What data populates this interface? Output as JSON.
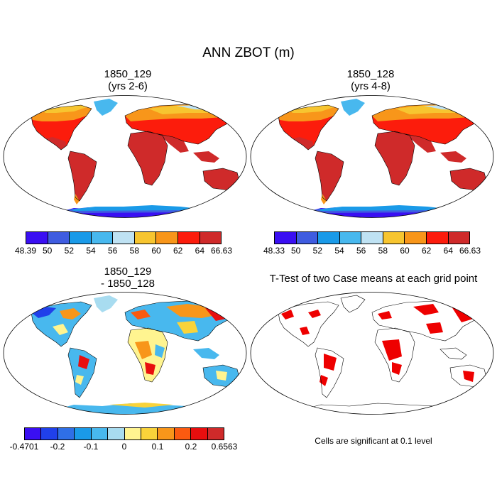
{
  "main_title": "ANN ZBOT (m)",
  "panel_a": {
    "title_line1": "1850_129",
    "title_line2": "(yrs 2-6)"
  },
  "panel_b": {
    "title_line1": "1850_128",
    "title_line2": "(yrs 4-8)"
  },
  "panel_c": {
    "title_line1": "1850_129",
    "title_line2": "- 1850_128"
  },
  "panel_d": {
    "title": "T-Test of two Case means at each grid point",
    "note": "Cells are significant at 0.1 level"
  },
  "colorbar_a": {
    "colors": [
      "#3a0ff2",
      "#3f5ce0",
      "#1a9ae8",
      "#48b8ee",
      "#bfe2f3",
      "#f7c530",
      "#f8961a",
      "#fc1c0c",
      "#cf2a2a"
    ],
    "labels": [
      "48.39",
      "50",
      "52",
      "54",
      "56",
      "58",
      "60",
      "62",
      "64",
      "66.63"
    ]
  },
  "colorbar_b": {
    "colors": [
      "#3a0ff2",
      "#3f5ce0",
      "#1a9ae8",
      "#48b8ee",
      "#bfe2f3",
      "#f7c530",
      "#f8961a",
      "#fc1c0c",
      "#cf2a2a"
    ],
    "labels": [
      "48.33",
      "50",
      "52",
      "54",
      "56",
      "58",
      "60",
      "62",
      "64",
      "66.63"
    ]
  },
  "colorbar_c": {
    "colors": [
      "#3a0ff2",
      "#2040ea",
      "#2f6fe6",
      "#1a9ae8",
      "#48b8ee",
      "#a8dcf0",
      "#fff490",
      "#f9d33a",
      "#f8961a",
      "#fb5a10",
      "#e80e0e",
      "#cf2a2a"
    ],
    "labels": [
      "-0.4701",
      "-0.2",
      "-0.1",
      "0",
      "0.1",
      "0.2",
      "0.6563"
    ]
  },
  "colors": {
    "ocean": "#ffffff",
    "coast": "#000000",
    "significant": "#ee0000"
  }
}
